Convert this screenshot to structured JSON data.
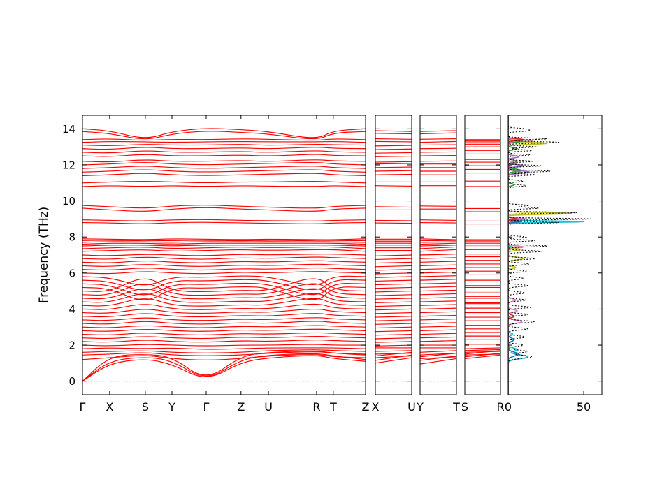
{
  "figure": {
    "background": "#ffffff"
  },
  "chart_data": {
    "type": "line",
    "title": "",
    "xlabel": "",
    "ylabel": "Frequency (THz)",
    "ylim": [
      -0.75,
      14.75
    ],
    "yticks": [
      0,
      2,
      4,
      6,
      8,
      10,
      12,
      14
    ],
    "grid": false,
    "legend": "none",
    "band_color": "#ff0000",
    "zero_line": {
      "value": 0,
      "color": "#3a3ab8",
      "style": "dotted"
    },
    "kpath_main": {
      "labels": [
        "Γ",
        "X",
        "S",
        "Y",
        "Γ",
        "Z",
        "U",
        "R",
        "T",
        "Z"
      ],
      "positions": [
        0,
        0.096,
        0.222,
        0.316,
        0.437,
        0.56,
        0.657,
        0.827,
        0.886,
        1.0
      ]
    },
    "segment_panels": [
      {
        "labels": [
          "X",
          "U"
        ],
        "from_index": 1,
        "to_index": 6
      },
      {
        "labels": [
          "Y",
          "T"
        ],
        "from_index": 3,
        "to_index": 8
      },
      {
        "labels": [
          "S",
          "R"
        ],
        "from_index": 2,
        "to_index": 7
      }
    ],
    "bands": [
      [
        0.0,
        1.0,
        1.25,
        0.95,
        0.0,
        1.05,
        1.3,
        1.45,
        1.25,
        1.1
      ],
      [
        0.0,
        1.15,
        1.35,
        1.15,
        0.0,
        1.2,
        1.45,
        1.55,
        1.4,
        1.2
      ],
      [
        0.0,
        1.4,
        1.5,
        1.35,
        0.0,
        1.4,
        1.6,
        1.7,
        1.55,
        1.45
      ],
      [
        1.2,
        1.3,
        1.45,
        1.25,
        1.15,
        1.25,
        1.4,
        1.5,
        1.35,
        1.3
      ],
      [
        1.45,
        1.5,
        1.6,
        1.45,
        1.4,
        1.45,
        1.55,
        1.65,
        1.55,
        1.5
      ],
      [
        1.6,
        1.65,
        1.7,
        1.6,
        1.55,
        1.6,
        1.7,
        1.75,
        1.7,
        1.65
      ],
      [
        1.8,
        1.85,
        1.8,
        1.85,
        1.75,
        1.8,
        1.85,
        1.85,
        1.85,
        1.8
      ],
      [
        2.0,
        1.95,
        2.05,
        2.0,
        1.95,
        2.0,
        2.0,
        2.05,
        2.0,
        2.0
      ],
      [
        2.2,
        2.15,
        2.3,
        2.2,
        2.15,
        2.25,
        2.2,
        2.3,
        2.25,
        2.2
      ],
      [
        2.4,
        2.35,
        2.5,
        2.4,
        2.35,
        2.45,
        2.4,
        2.5,
        2.45,
        2.4
      ],
      [
        2.6,
        2.55,
        2.7,
        2.6,
        2.55,
        2.65,
        2.6,
        2.7,
        2.65,
        2.6
      ],
      [
        2.8,
        2.75,
        2.9,
        2.8,
        2.75,
        2.85,
        2.8,
        2.9,
        2.85,
        2.8
      ],
      [
        3.0,
        2.95,
        3.1,
        3.0,
        2.95,
        3.05,
        3.0,
        3.1,
        3.05,
        3.0
      ],
      [
        3.2,
        3.15,
        3.35,
        3.2,
        3.15,
        3.25,
        3.2,
        3.35,
        3.25,
        3.2
      ],
      [
        3.4,
        3.35,
        3.55,
        3.4,
        3.35,
        3.45,
        3.4,
        3.55,
        3.45,
        3.4
      ],
      [
        3.6,
        3.55,
        3.8,
        3.6,
        3.55,
        3.65,
        3.6,
        3.8,
        3.65,
        3.6
      ],
      [
        3.8,
        3.75,
        4.05,
        3.8,
        3.75,
        3.85,
        3.8,
        4.05,
        3.85,
        3.8
      ],
      [
        4.0,
        3.95,
        4.35,
        4.0,
        3.95,
        4.05,
        4.0,
        4.35,
        4.05,
        4.0
      ],
      [
        4.2,
        4.15,
        4.7,
        4.2,
        4.15,
        4.25,
        4.2,
        4.7,
        4.25,
        4.2
      ],
      [
        4.4,
        4.35,
        5.0,
        4.4,
        4.35,
        4.45,
        4.4,
        5.0,
        4.45,
        4.4
      ],
      [
        4.6,
        4.55,
        5.3,
        4.6,
        4.55,
        4.65,
        4.6,
        5.3,
        4.65,
        4.6
      ],
      [
        4.8,
        4.75,
        5.6,
        4.8,
        4.75,
        4.85,
        4.8,
        5.6,
        4.85,
        4.8
      ],
      [
        5.0,
        4.95,
        5.9,
        5.0,
        4.95,
        5.05,
        5.0,
        5.9,
        5.05,
        5.0
      ],
      [
        5.2,
        5.15,
        4.3,
        5.2,
        5.15,
        5.25,
        5.2,
        4.3,
        5.25,
        5.2
      ],
      [
        5.4,
        5.35,
        4.6,
        5.4,
        5.35,
        5.45,
        5.4,
        4.6,
        5.45,
        5.4
      ],
      [
        5.6,
        5.55,
        4.9,
        5.6,
        5.55,
        5.65,
        5.6,
        4.9,
        5.65,
        5.6
      ],
      [
        5.8,
        5.75,
        5.2,
        5.8,
        5.75,
        5.85,
        5.8,
        5.2,
        5.85,
        5.8
      ],
      [
        6.0,
        5.95,
        6.1,
        6.0,
        5.95,
        6.05,
        6.0,
        6.1,
        6.05,
        6.0
      ],
      [
        6.2,
        6.15,
        6.3,
        6.2,
        6.15,
        6.25,
        6.2,
        6.3,
        6.25,
        6.2
      ],
      [
        6.4,
        6.35,
        6.5,
        6.4,
        6.35,
        6.45,
        6.4,
        6.5,
        6.45,
        6.4
      ],
      [
        6.6,
        6.55,
        6.7,
        6.6,
        6.55,
        6.65,
        6.6,
        6.7,
        6.65,
        6.6
      ],
      [
        6.8,
        6.75,
        6.9,
        6.8,
        6.75,
        6.85,
        6.8,
        6.9,
        6.85,
        6.8
      ],
      [
        7.0,
        6.95,
        7.05,
        7.0,
        6.95,
        7.05,
        7.0,
        7.05,
        7.05,
        7.0
      ],
      [
        7.2,
        7.25,
        7.3,
        7.2,
        7.25,
        7.3,
        7.25,
        7.3,
        7.3,
        7.2
      ],
      [
        7.35,
        7.4,
        7.45,
        7.35,
        7.4,
        7.45,
        7.4,
        7.45,
        7.45,
        7.35
      ],
      [
        7.5,
        7.55,
        7.55,
        7.5,
        7.55,
        7.55,
        7.55,
        7.55,
        7.55,
        7.5
      ],
      [
        7.6,
        7.65,
        7.65,
        7.6,
        7.65,
        7.65,
        7.65,
        7.65,
        7.65,
        7.6
      ],
      [
        7.7,
        7.75,
        7.72,
        7.7,
        7.75,
        7.72,
        7.75,
        7.72,
        7.72,
        7.7
      ],
      [
        7.8,
        7.82,
        7.78,
        7.8,
        7.82,
        7.78,
        7.82,
        7.78,
        7.78,
        7.8
      ],
      [
        7.9,
        7.88,
        7.85,
        7.9,
        7.88,
        7.85,
        7.88,
        7.85,
        7.85,
        7.9
      ],
      [
        8.8,
        8.78,
        8.72,
        8.8,
        8.82,
        8.78,
        8.76,
        8.72,
        8.78,
        8.8
      ],
      [
        8.95,
        8.92,
        8.88,
        8.95,
        8.97,
        8.92,
        8.9,
        8.88,
        8.92,
        8.95
      ],
      [
        9.6,
        9.5,
        9.4,
        9.55,
        9.65,
        9.55,
        9.5,
        9.4,
        9.55,
        9.6
      ],
      [
        9.75,
        9.68,
        9.58,
        9.72,
        9.78,
        9.7,
        9.65,
        9.58,
        9.7,
        9.75
      ],
      [
        10.8,
        10.85,
        10.8,
        10.85,
        10.8,
        10.85,
        10.82,
        10.8,
        10.85,
        10.8
      ],
      [
        11.0,
        11.05,
        11.1,
        11.05,
        11.0,
        11.05,
        11.05,
        11.1,
        11.05,
        11.0
      ],
      [
        11.4,
        11.45,
        11.55,
        11.45,
        11.4,
        11.45,
        11.48,
        11.55,
        11.45,
        11.4
      ],
      [
        11.6,
        11.65,
        11.75,
        11.65,
        11.6,
        11.65,
        11.68,
        11.75,
        11.65,
        11.6
      ],
      [
        11.8,
        11.85,
        11.95,
        11.85,
        11.8,
        11.85,
        11.88,
        11.95,
        11.85,
        11.8
      ],
      [
        12.0,
        12.05,
        12.15,
        12.05,
        12.0,
        12.05,
        12.08,
        12.15,
        12.05,
        12.0
      ],
      [
        12.2,
        12.15,
        12.3,
        12.2,
        12.2,
        12.25,
        12.18,
        12.3,
        12.22,
        12.2
      ],
      [
        12.5,
        12.45,
        12.6,
        12.5,
        12.5,
        12.55,
        12.48,
        12.6,
        12.52,
        12.5
      ],
      [
        12.7,
        12.65,
        12.8,
        12.7,
        12.7,
        12.75,
        12.68,
        12.8,
        12.72,
        12.7
      ],
      [
        12.9,
        12.85,
        13.0,
        12.9,
        12.9,
        12.95,
        12.88,
        13.0,
        12.92,
        12.9
      ],
      [
        13.1,
        13.05,
        13.15,
        13.1,
        13.1,
        13.15,
        13.08,
        13.15,
        13.12,
        13.1
      ],
      [
        13.25,
        13.3,
        13.28,
        13.25,
        13.28,
        13.3,
        13.28,
        13.28,
        13.3,
        13.25
      ],
      [
        13.4,
        13.45,
        13.35,
        13.42,
        13.4,
        13.45,
        13.42,
        13.35,
        13.45,
        13.4
      ],
      [
        13.85,
        13.75,
        13.35,
        13.72,
        13.9,
        13.8,
        13.72,
        13.35,
        13.78,
        13.85
      ],
      [
        14.0,
        13.9,
        13.4,
        13.85,
        14.05,
        13.95,
        13.85,
        13.4,
        13.9,
        14.0
      ]
    ],
    "dos": {
      "xlim": [
        0,
        62
      ],
      "xticks": [
        0,
        50
      ],
      "total": {
        "color": "#000000",
        "style": "dotted",
        "peaks": [
          [
            1.35,
            16,
            0.12
          ],
          [
            1.65,
            13,
            0.1
          ],
          [
            2.0,
            10,
            0.09
          ],
          [
            2.45,
            12,
            0.09
          ],
          [
            2.9,
            13,
            0.09
          ],
          [
            3.3,
            17,
            0.09
          ],
          [
            3.7,
            13,
            0.08
          ],
          [
            4.1,
            15,
            0.08
          ],
          [
            4.5,
            12,
            0.08
          ],
          [
            4.9,
            11,
            0.08
          ],
          [
            5.3,
            13,
            0.08
          ],
          [
            5.7,
            10,
            0.08
          ],
          [
            6.1,
            12,
            0.08
          ],
          [
            6.5,
            14,
            0.08
          ],
          [
            6.8,
            18,
            0.07
          ],
          [
            7.2,
            22,
            0.07
          ],
          [
            7.5,
            26,
            0.06
          ],
          [
            7.8,
            18,
            0.06
          ],
          [
            8.0,
            12,
            0.06
          ],
          [
            8.8,
            34,
            0.05
          ],
          [
            9.0,
            55,
            0.05
          ],
          [
            9.35,
            46,
            0.05
          ],
          [
            9.6,
            20,
            0.06
          ],
          [
            9.75,
            14,
            0.06
          ],
          [
            10.85,
            12,
            0.07
          ],
          [
            11.1,
            10,
            0.07
          ],
          [
            11.45,
            18,
            0.06
          ],
          [
            11.65,
            28,
            0.06
          ],
          [
            11.95,
            22,
            0.06
          ],
          [
            12.2,
            16,
            0.06
          ],
          [
            12.55,
            14,
            0.06
          ],
          [
            12.8,
            16,
            0.06
          ],
          [
            13.0,
            18,
            0.06
          ],
          [
            13.25,
            34,
            0.06
          ],
          [
            13.45,
            26,
            0.06
          ],
          [
            13.9,
            14,
            0.07
          ],
          [
            14.0,
            10,
            0.06
          ]
        ]
      },
      "partials": [
        {
          "color": "#17becf",
          "peaks": [
            [
              1.35,
              13,
              0.15
            ],
            [
              1.75,
              6,
              0.12
            ],
            [
              2.6,
              3,
              0.1
            ],
            [
              7.4,
              4,
              0.08
            ],
            [
              8.85,
              50,
              0.05
            ]
          ]
        },
        {
          "color": "#e377c2",
          "peaks": [
            [
              3.3,
              9,
              0.12
            ],
            [
              3.9,
              6,
              0.1
            ],
            [
              4.5,
              5,
              0.1
            ],
            [
              7.45,
              10,
              0.07
            ],
            [
              9.0,
              12,
              0.06
            ],
            [
              11.8,
              5,
              0.08
            ],
            [
              13.35,
              16,
              0.07
            ]
          ]
        },
        {
          "color": "#bcbd22",
          "peaks": [
            [
              6.3,
              5,
              0.08
            ],
            [
              6.8,
              10,
              0.1
            ],
            [
              7.3,
              8,
              0.08
            ],
            [
              9.3,
              42,
              0.06
            ],
            [
              12.1,
              6,
              0.08
            ],
            [
              13.2,
              26,
              0.08
            ]
          ]
        },
        {
          "color": "#9467bd",
          "peaks": [
            [
              8.9,
              7,
              0.06
            ],
            [
              11.6,
              14,
              0.1
            ],
            [
              11.95,
              10,
              0.08
            ],
            [
              12.45,
              7,
              0.08
            ]
          ]
        },
        {
          "color": "#2ca02c",
          "peaks": [
            [
              10.9,
              4,
              0.08
            ],
            [
              11.7,
              8,
              0.1
            ],
            [
              12.9,
              6,
              0.08
            ],
            [
              13.3,
              8,
              0.07
            ]
          ]
        },
        {
          "color": "#1f77b4",
          "peaks": [
            [
              1.5,
              7,
              0.15
            ],
            [
              2.3,
              4,
              0.12
            ],
            [
              8.85,
              8,
              0.05
            ]
          ]
        },
        {
          "color": "#d62728",
          "peaks": [
            [
              3.6,
              4,
              0.1
            ],
            [
              9.0,
              6,
              0.06
            ],
            [
              13.4,
              10,
              0.07
            ]
          ]
        },
        {
          "color": "#7f7f7f",
          "peaks": [
            [
              11.6,
              8,
              0.09
            ],
            [
              12.2,
              6,
              0.09
            ]
          ]
        }
      ]
    }
  }
}
